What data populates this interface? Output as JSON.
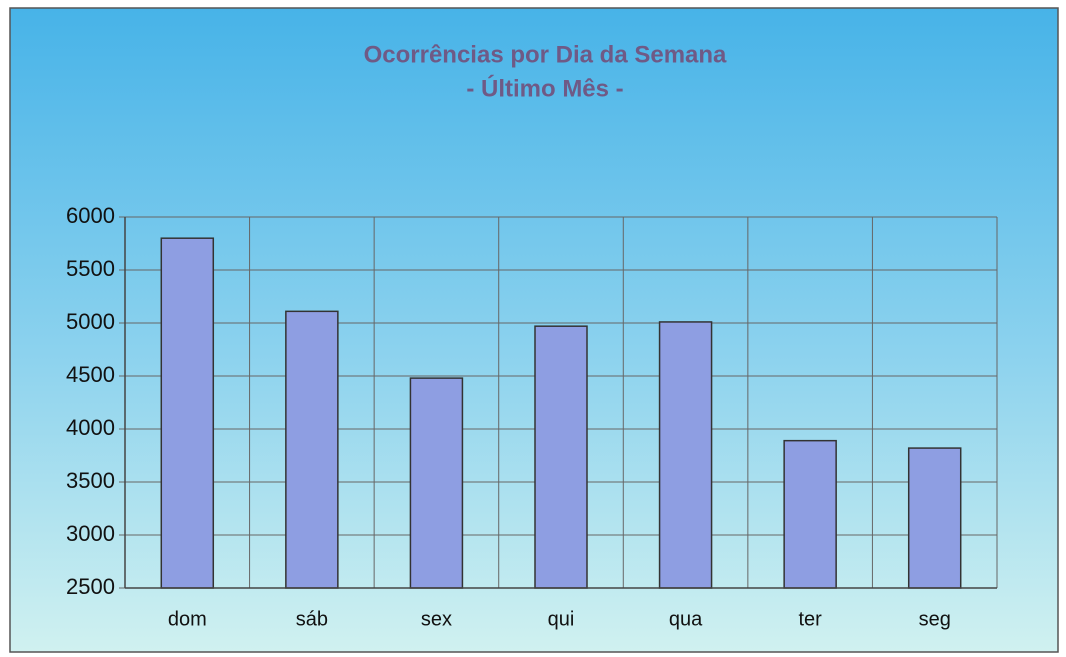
{
  "chart_data": {
    "type": "bar",
    "title": "Ocorrências por Dia da Semana",
    "subtitle": "- Último Mês -",
    "categories": [
      "dom",
      "sáb",
      "sex",
      "qui",
      "qua",
      "ter",
      "seg"
    ],
    "values": [
      5800,
      5110,
      4480,
      4970,
      5010,
      3890,
      3820
    ],
    "color": "#8e9ee2",
    "ylim": [
      2500,
      6000
    ],
    "yticks": [
      2500,
      3000,
      3500,
      4000,
      4500,
      5000,
      5500,
      6000
    ],
    "grid": true
  }
}
